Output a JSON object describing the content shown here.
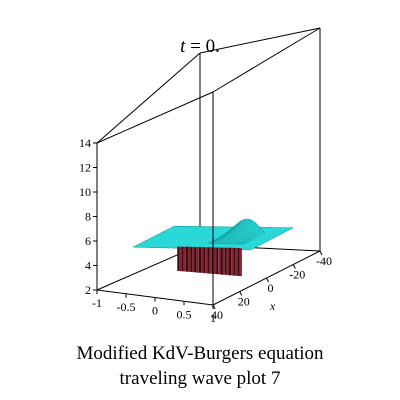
{
  "title": {
    "var": "t",
    "eq": " = 0."
  },
  "caption": {
    "line1": "Modified KdV-Burgers  equation",
    "line2": "traveling wave plot 7"
  },
  "chart_data": {
    "type": "surface3d",
    "z_ticks": [
      "2",
      "4",
      "6",
      "8",
      "10",
      "12",
      "14"
    ],
    "y_ticks": [
      "-1",
      "-0.5",
      "0",
      "0.5",
      "1"
    ],
    "x_ticks": [
      "40",
      "20",
      "0",
      "-20",
      "-40"
    ],
    "x_axis_label": "x",
    "x_range": [
      -40,
      40
    ],
    "y_range": [
      -1,
      1
    ],
    "z_range": [
      2,
      14
    ],
    "baseline_z": 4,
    "hump_peak_z": 4.8,
    "colors": {
      "top": "#2ad8d8",
      "front": "#8b2232",
      "front_dark": "#3a0d14",
      "ridge": "#0d8e8e"
    }
  }
}
